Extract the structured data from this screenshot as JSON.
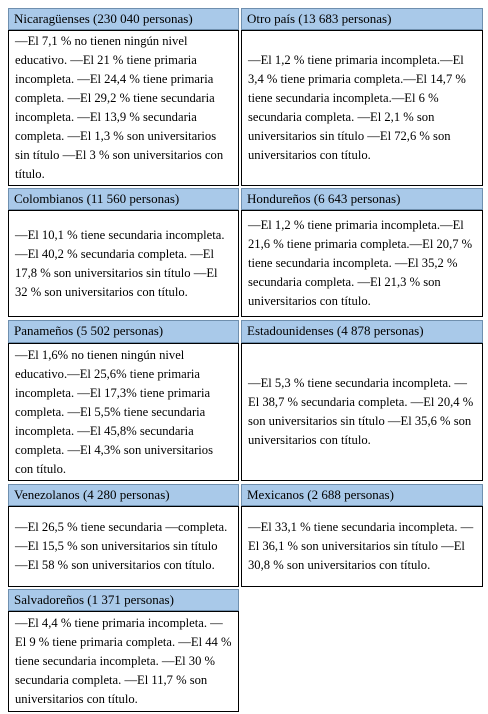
{
  "table": {
    "rows": [
      [
        {
          "header": "Nicaragüenses (230 040 personas)",
          "body": "—El 7,1 % no tienen ningún nivel educativo. —El 21 % tiene primaria incompleta. —El 24,4 % tiene primaria completa. —El 29,2 % tiene secundaria incompleta. —El 13,9 % secundaria completa. —El 1,3 % son universitarios sin título —El 3 % son universitarios con título."
        },
        {
          "header": "Otro país (13 683 personas)",
          "body": "—El 1,2 % tiene primaria incompleta.—El 3,4 % tiene primaria completa.—El 14,7 % tiene secundaria incompleta.—El 6 % secundaria completa. —El 2,1 % son universitarios sin título —El 72,6 % son universitarios con título."
        }
      ],
      [
        {
          "header": "Colombianos (11 560 personas)",
          "body": "—El 10,1 % tiene secundaria incompleta. —El 40,2 % secundaria completa. —El 17,8 % son universitarios sin título —El 32 % son universitarios con título."
        },
        {
          "header": "Hondureños (6 643 personas)",
          "body": "—El 1,2 % tiene primaria incompleta.—El 21,6 % tiene primaria completa.—El 20,7 % tiene secundaria incompleta. —El 35,2 % secundaria completa. —El 21,3 % son universitarios con título."
        }
      ],
      [
        {
          "header": "Panameños (5 502 personas)",
          "body": "—El 1,6% no tienen ningún nivel educativo.—El 25,6% tiene primaria incompleta. —El 17,3% tiene primaria completa. —El 5,5% tiene secundaria incompleta. —El 45,8% secundaria completa. —El 4,3% son universitarios con título."
        },
        {
          "header": "Estadounidenses (4 878 personas)",
          "body": "—El 5,3 % tiene secundaria incompleta. —El 38,7 % secundaria completa. —El 20,4 % son universitarios sin título —El 35,6 % son universitarios con título."
        }
      ],
      [
        {
          "header": "Venezolanos (4 280 personas)",
          "body": "—El 26,5 % tiene secundaria —completa. —El 15,5 % son universitarios sin título —El 58 % son universitarios con título."
        },
        {
          "header": "Mexicanos (2 688 personas)",
          "body": "—El 33,1 % tiene secundaria incompleta. —El 36,1 % son universitarios sin título —El 30,8 % son universitarios con título."
        }
      ],
      [
        {
          "header": "Salvadoreños (1 371 personas)",
          "body": "—El 4,4 % tiene primaria incompleta. —El 9 % tiene primaria completa. —El 44 % tiene secundaria incompleta. —El 30 % secundaria completa. —El 11,7 % son universitarios con título."
        }
      ]
    ]
  }
}
